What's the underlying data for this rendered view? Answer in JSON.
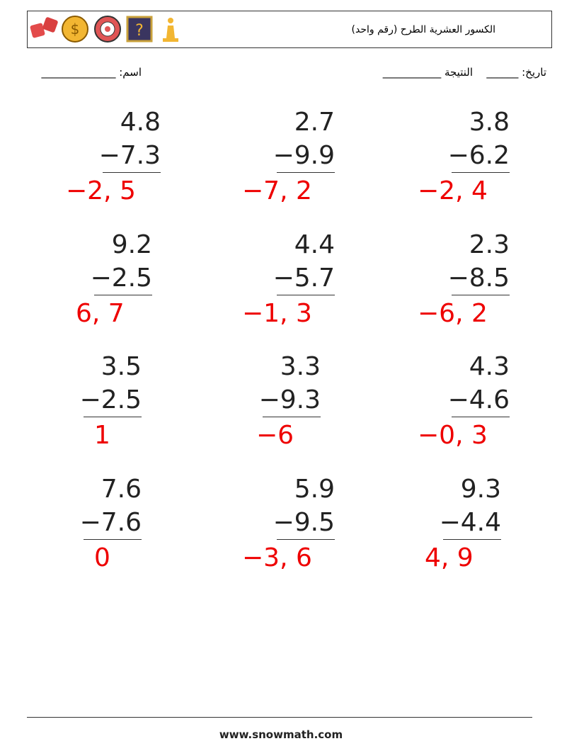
{
  "header": {
    "title": "الكسور العشرية الطرح (رقم واحد)"
  },
  "fields": {
    "name": "اسم: ______________",
    "date": "تاريخ: ______",
    "score": "النتيجة ___________"
  },
  "problems": [
    {
      "top": "4.8",
      "bottom": "−7.3",
      "answer": "−2, 5"
    },
    {
      "top": "2.7",
      "bottom": "−9.9",
      "answer": "−7, 2"
    },
    {
      "top": "3.8",
      "bottom": "−6.2",
      "answer": "−2, 4"
    },
    {
      "top": "9.2",
      "bottom": "−2.5",
      "answer": "6, 7"
    },
    {
      "top": "4.4",
      "bottom": "−5.7",
      "answer": "−1, 3"
    },
    {
      "top": "2.3",
      "bottom": "−8.5",
      "answer": "−6, 2"
    },
    {
      "top": "3.5",
      "bottom": "−2.5",
      "answer": "1"
    },
    {
      "top": "3.3",
      "bottom": "−9.3",
      "answer": "−6"
    },
    {
      "top": "4.3",
      "bottom": "−4.6",
      "answer": "−0, 3"
    },
    {
      "top": "7.6",
      "bottom": "−7.6",
      "answer": "0"
    },
    {
      "top": "5.9",
      "bottom": "−9.5",
      "answer": "−3, 6"
    },
    {
      "top": "9.3",
      "bottom": "−4.4",
      "answer": "4, 9"
    }
  ],
  "footer": {
    "url": "www.snowmath.com"
  }
}
